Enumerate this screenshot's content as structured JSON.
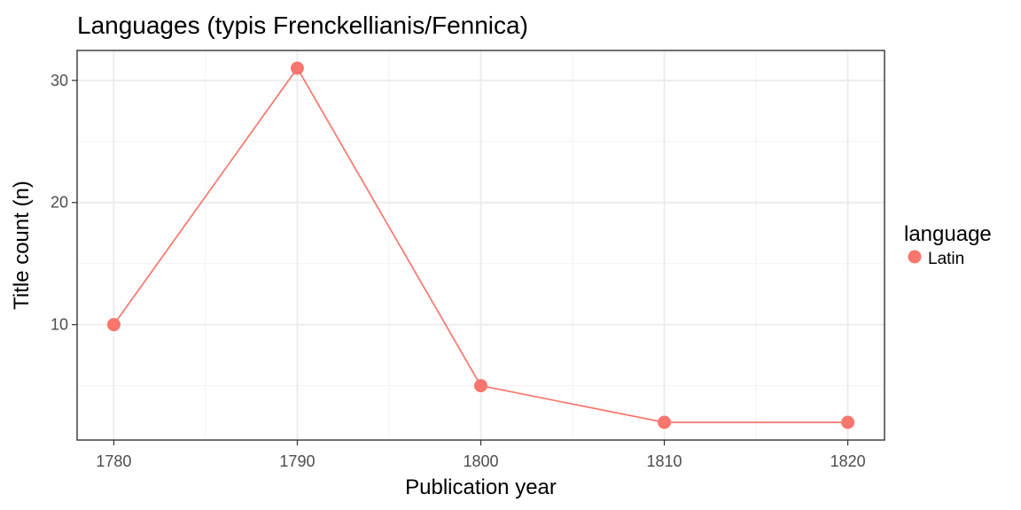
{
  "chart_data": {
    "type": "line",
    "title": "Languages (typis Frenckellianis/Fennica)",
    "xlabel": "Publication year",
    "ylabel": "Title count (n)",
    "x": [
      1780,
      1790,
      1800,
      1810,
      1820
    ],
    "xlim": [
      1778,
      1822
    ],
    "ylim": [
      0.55,
      32.45
    ],
    "x_ticks": [
      1780,
      1790,
      1800,
      1810,
      1820
    ],
    "x_tick_labels": [
      "1780",
      "1790",
      "1800",
      "1810",
      "1820"
    ],
    "y_ticks": [
      10,
      20,
      30
    ],
    "y_tick_labels": [
      "10",
      "20",
      "30"
    ],
    "x_minor_gridlines": [
      1785,
      1795,
      1805,
      1815
    ],
    "y_minor_gridlines": [
      5,
      15,
      25
    ],
    "grid": true,
    "legend": {
      "title": "language",
      "placement": "right"
    },
    "series": [
      {
        "name": "Latin",
        "color": "#F8766D",
        "values": [
          10,
          31,
          5,
          2,
          2
        ]
      }
    ]
  }
}
